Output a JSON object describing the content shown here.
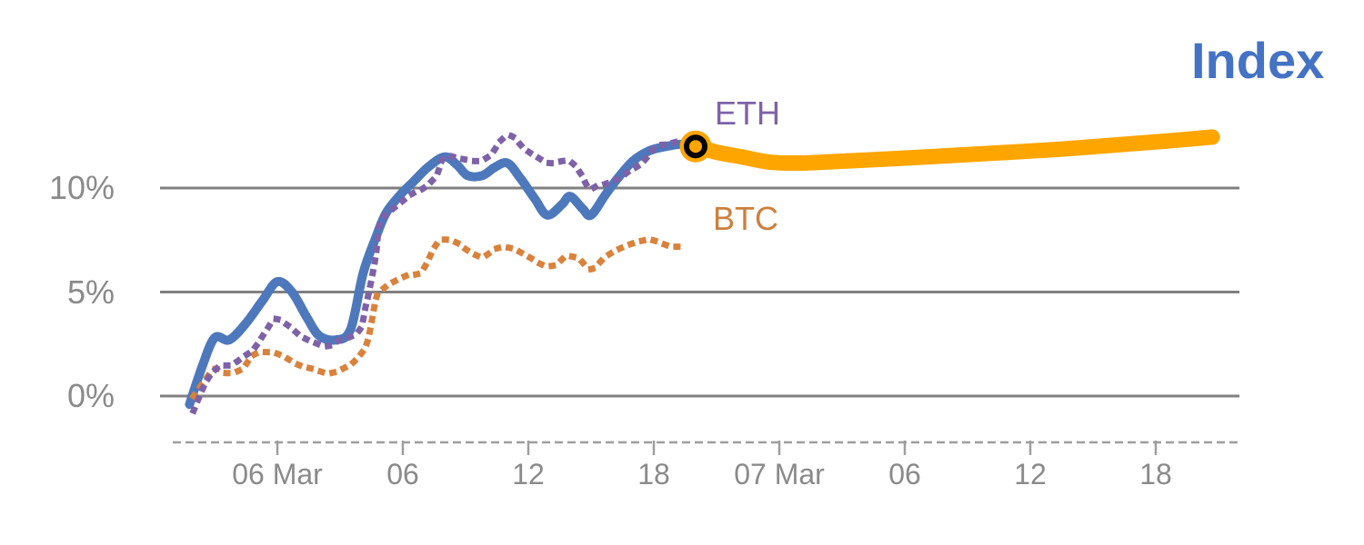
{
  "title": {
    "text": "Index"
  },
  "labels": {
    "eth": "ETH",
    "btc": "BTC"
  },
  "colors": {
    "index_line": "#4D78BC",
    "eth_line": "#7E62A8",
    "btc_line": "#D9823C",
    "projection_line": "#FFA500",
    "title_text": "#4472C4",
    "eth_text": "#7E62A8",
    "btc_text": "#CD7F3C",
    "axis_text": "#8A8A8A",
    "gridline": "#808080",
    "axis_line": "#9E9E9E",
    "marker_ring": "#000000",
    "marker_fill": "#FFA500"
  },
  "chart_data": {
    "type": "line",
    "title": "Index",
    "xlabel": "",
    "ylabel": "",
    "x_unit": "hours relative to 06 Mar 00:00",
    "y_unit": "percent",
    "xlim": [
      -5.6,
      46.1
    ],
    "ylim": [
      -2.2,
      13.0
    ],
    "grid": "horizontal",
    "legend_position": "inline-labels",
    "y_ticks": [
      {
        "v": 0,
        "label": "0%"
      },
      {
        "v": 5,
        "label": "5%"
      },
      {
        "v": 10,
        "label": "10%"
      }
    ],
    "x_ticks": [
      {
        "h": 0,
        "label": "06 Mar"
      },
      {
        "h": 6,
        "label": "06"
      },
      {
        "h": 12,
        "label": "12"
      },
      {
        "h": 18,
        "label": "18"
      },
      {
        "h": 24,
        "label": "07 Mar"
      },
      {
        "h": 30,
        "label": "06"
      },
      {
        "h": 36,
        "label": "12"
      },
      {
        "h": 42,
        "label": "18"
      }
    ],
    "series": [
      {
        "name": "Index",
        "style": "solid",
        "color_key": "index_line",
        "width": 10,
        "points": [
          [
            -4.2,
            -0.4
          ],
          [
            -3.6,
            1.4
          ],
          [
            -3.0,
            2.8
          ],
          [
            -2.3,
            2.7
          ],
          [
            -1.5,
            3.5
          ],
          [
            -0.7,
            4.6
          ],
          [
            0,
            5.5
          ],
          [
            0.7,
            5.0
          ],
          [
            1.4,
            3.8
          ],
          [
            2.0,
            2.9
          ],
          [
            2.8,
            2.7
          ],
          [
            3.5,
            3.2
          ],
          [
            4.1,
            5.9
          ],
          [
            4.7,
            7.6
          ],
          [
            5.2,
            8.8
          ],
          [
            5.9,
            9.7
          ],
          [
            6.5,
            10.3
          ],
          [
            7.2,
            11.0
          ],
          [
            8.0,
            11.5
          ],
          [
            8.6,
            11.1
          ],
          [
            9.1,
            10.6
          ],
          [
            9.8,
            10.6
          ],
          [
            10.4,
            11.0
          ],
          [
            11.0,
            11.2
          ],
          [
            11.6,
            10.5
          ],
          [
            12.3,
            9.5
          ],
          [
            12.9,
            8.7
          ],
          [
            13.6,
            9.2
          ],
          [
            14.0,
            9.6
          ],
          [
            14.6,
            9.0
          ],
          [
            15.0,
            8.7
          ],
          [
            15.7,
            9.7
          ],
          [
            16.3,
            10.5
          ],
          [
            17.0,
            11.3
          ],
          [
            17.8,
            11.8
          ],
          [
            18.6,
            12.0
          ],
          [
            19.3,
            12.1
          ],
          [
            20.0,
            12.0
          ]
        ]
      },
      {
        "name": "Index projection",
        "style": "solid",
        "color_key": "projection_line",
        "width": 17,
        "points": [
          [
            20.0,
            12.0
          ],
          [
            21.1,
            11.7
          ],
          [
            22.2,
            11.5
          ],
          [
            23.5,
            11.25
          ],
          [
            25.0,
            11.2
          ],
          [
            27.2,
            11.3
          ],
          [
            29.3,
            11.4
          ],
          [
            32.0,
            11.55
          ],
          [
            34.6,
            11.7
          ],
          [
            37.2,
            11.85
          ],
          [
            39.8,
            12.05
          ],
          [
            42.4,
            12.25
          ],
          [
            44.7,
            12.45
          ]
        ]
      },
      {
        "name": "BTC",
        "style": "dotted",
        "color_key": "btc_line",
        "width": 7,
        "points": [
          [
            -4.0,
            0.0
          ],
          [
            -3.5,
            0.7
          ],
          [
            -3.0,
            1.3
          ],
          [
            -2.4,
            1.1
          ],
          [
            -1.7,
            1.3
          ],
          [
            -1.1,
            2.0
          ],
          [
            -0.3,
            2.1
          ],
          [
            0.3,
            1.9
          ],
          [
            1.0,
            1.5
          ],
          [
            1.7,
            1.3
          ],
          [
            2.5,
            1.1
          ],
          [
            3.3,
            1.4
          ],
          [
            3.8,
            1.8
          ],
          [
            4.3,
            2.6
          ],
          [
            4.7,
            4.6
          ],
          [
            4.9,
            5.0
          ],
          [
            5.4,
            5.4
          ],
          [
            6.2,
            5.8
          ],
          [
            6.9,
            6.0
          ],
          [
            7.7,
            7.4
          ],
          [
            8.5,
            7.4
          ],
          [
            9.1,
            7.0
          ],
          [
            9.8,
            6.7
          ],
          [
            10.5,
            7.1
          ],
          [
            11.2,
            7.1
          ],
          [
            12.0,
            6.7
          ],
          [
            12.7,
            6.3
          ],
          [
            13.3,
            6.3
          ],
          [
            13.8,
            6.7
          ],
          [
            14.4,
            6.6
          ],
          [
            15.0,
            6.1
          ],
          [
            15.7,
            6.7
          ],
          [
            16.4,
            7.1
          ],
          [
            17.2,
            7.4
          ],
          [
            17.9,
            7.5
          ],
          [
            18.8,
            7.2
          ],
          [
            19.6,
            7.2
          ]
        ]
      },
      {
        "name": "ETH",
        "style": "dotted",
        "color_key": "eth_line",
        "width": 7,
        "points": [
          [
            -4.0,
            -0.7
          ],
          [
            -3.4,
            0.7
          ],
          [
            -2.8,
            1.4
          ],
          [
            -2.2,
            1.5
          ],
          [
            -1.6,
            1.9
          ],
          [
            -1.1,
            2.3
          ],
          [
            -0.5,
            3.2
          ],
          [
            -0.1,
            3.7
          ],
          [
            0.5,
            3.4
          ],
          [
            1.1,
            2.9
          ],
          [
            1.7,
            2.6
          ],
          [
            2.4,
            2.4
          ],
          [
            3.0,
            2.7
          ],
          [
            3.6,
            2.9
          ],
          [
            4.0,
            3.3
          ],
          [
            4.2,
            4.2
          ],
          [
            4.4,
            5.1
          ],
          [
            4.7,
            6.7
          ],
          [
            4.9,
            8.3
          ],
          [
            5.3,
            8.8
          ],
          [
            5.9,
            9.3
          ],
          [
            6.4,
            9.7
          ],
          [
            7.0,
            10.0
          ],
          [
            7.6,
            10.6
          ],
          [
            8.0,
            11.5
          ],
          [
            8.8,
            11.4
          ],
          [
            9.6,
            11.3
          ],
          [
            10.2,
            11.6
          ],
          [
            10.7,
            12.3
          ],
          [
            11.2,
            12.5
          ],
          [
            11.8,
            11.9
          ],
          [
            12.4,
            11.5
          ],
          [
            13.0,
            11.2
          ],
          [
            13.7,
            11.3
          ],
          [
            14.1,
            11.2
          ],
          [
            14.5,
            10.7
          ],
          [
            14.9,
            10.0
          ],
          [
            15.3,
            10.1
          ],
          [
            15.7,
            10.2
          ],
          [
            16.4,
            10.5
          ],
          [
            16.8,
            10.8
          ],
          [
            17.3,
            11.1
          ],
          [
            17.7,
            11.5
          ],
          [
            18.1,
            12.0
          ],
          [
            18.6,
            12.1
          ],
          [
            19.0,
            12.2
          ]
        ]
      }
    ],
    "marker": {
      "h": 20.0,
      "v": 12.0,
      "on_series": "Index"
    }
  }
}
